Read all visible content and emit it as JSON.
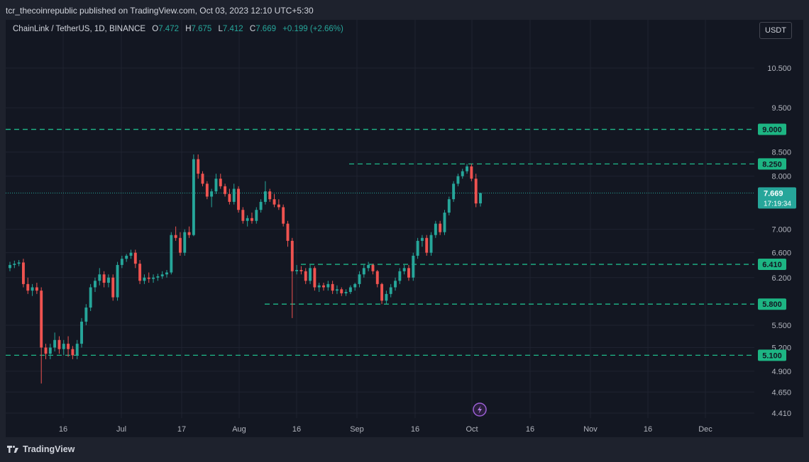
{
  "header": {
    "publisher_text": "tcr_thecoinrepublic published on TradingView.com, Oct 03, 2023 12:10 UTC+5:30"
  },
  "legend": {
    "symbol": "ChainLink / TetherUS, 1D, BINANCE",
    "open_label": "O",
    "open": "7.472",
    "high_label": "H",
    "high": "7.675",
    "low_label": "L",
    "low": "7.412",
    "close_label": "C",
    "close": "7.669",
    "change": "+0.199 (+2.66%)"
  },
  "currency_button": "USDT",
  "footer": {
    "brand": "TradingView"
  },
  "colors": {
    "up": "#26a69a",
    "down": "#ef5350",
    "level_line": "#1fb98a",
    "background": "#131722"
  },
  "chart_data": {
    "type": "candlestick",
    "y_axis_scale": "log",
    "y_ticks": [
      {
        "value": 10.5,
        "label": "10.500"
      },
      {
        "value": 9.5,
        "label": "9.500"
      },
      {
        "value": 8.5,
        "label": "8.500"
      },
      {
        "value": 8.0,
        "label": "8.000"
      },
      {
        "value": 7.0,
        "label": "7.000"
      },
      {
        "value": 6.6,
        "label": "6.600"
      },
      {
        "value": 6.2,
        "label": "6.200"
      },
      {
        "value": 5.5,
        "label": "5.500"
      },
      {
        "value": 5.2,
        "label": "5.200"
      },
      {
        "value": 4.9,
        "label": "4.900"
      },
      {
        "value": 4.65,
        "label": "4.650"
      },
      {
        "value": 4.41,
        "label": "4.410"
      }
    ],
    "x_ticks": [
      "16",
      "Jul",
      "17",
      "Aug",
      "16",
      "Sep",
      "16",
      "Oct",
      "16",
      "Nov",
      "16",
      "Dec"
    ],
    "price_levels": [
      {
        "value": 9.0,
        "label": "9.000"
      },
      {
        "value": 8.25,
        "label": "8.250"
      },
      {
        "value": 6.41,
        "label": "6.410"
      },
      {
        "value": 5.8,
        "label": "5.800"
      },
      {
        "value": 5.1,
        "label": "5.100"
      }
    ],
    "last_price": {
      "value": 7.669,
      "label": "7.669",
      "countdown": "17:19:34"
    },
    "candles": [
      [
        6.35,
        6.45,
        6.3,
        6.4
      ],
      [
        6.4,
        6.47,
        6.35,
        6.42
      ],
      [
        6.42,
        6.48,
        6.38,
        6.44
      ],
      [
        6.44,
        6.5,
        6.05,
        6.1
      ],
      [
        6.1,
        6.2,
        5.95,
        6.0
      ],
      [
        6.0,
        6.1,
        5.92,
        6.05
      ],
      [
        6.05,
        6.12,
        5.95,
        6.0
      ],
      [
        6.0,
        6.05,
        4.75,
        5.2
      ],
      [
        5.2,
        5.25,
        5.05,
        5.12
      ],
      [
        5.12,
        5.25,
        5.05,
        5.2
      ],
      [
        5.2,
        5.4,
        5.15,
        5.3
      ],
      [
        5.3,
        5.35,
        5.12,
        5.18
      ],
      [
        5.18,
        5.3,
        5.1,
        5.25
      ],
      [
        5.25,
        5.35,
        5.08,
        5.18
      ],
      [
        5.18,
        5.22,
        5.05,
        5.1
      ],
      [
        5.1,
        5.3,
        5.05,
        5.25
      ],
      [
        5.25,
        5.6,
        5.2,
        5.55
      ],
      [
        5.55,
        5.8,
        5.5,
        5.75
      ],
      [
        5.75,
        6.1,
        5.7,
        6.05
      ],
      [
        6.05,
        6.2,
        5.98,
        6.15
      ],
      [
        6.15,
        6.35,
        6.08,
        6.25
      ],
      [
        6.25,
        6.3,
        6.05,
        6.12
      ],
      [
        6.12,
        6.25,
        6.05,
        6.2
      ],
      [
        6.2,
        6.25,
        5.85,
        5.9
      ],
      [
        5.9,
        6.45,
        5.85,
        6.4
      ],
      [
        6.4,
        6.55,
        6.35,
        6.5
      ],
      [
        6.5,
        6.58,
        6.45,
        6.55
      ],
      [
        6.55,
        6.65,
        6.5,
        6.6
      ],
      [
        6.6,
        6.65,
        6.35,
        6.42
      ],
      [
        6.42,
        6.48,
        6.1,
        6.15
      ],
      [
        6.15,
        6.25,
        6.1,
        6.2
      ],
      [
        6.2,
        6.28,
        6.12,
        6.18
      ],
      [
        6.18,
        6.25,
        6.12,
        6.2
      ],
      [
        6.2,
        6.26,
        6.15,
        6.22
      ],
      [
        6.22,
        6.3,
        6.18,
        6.25
      ],
      [
        6.25,
        6.32,
        6.2,
        6.28
      ],
      [
        6.28,
        6.95,
        6.25,
        6.9
      ],
      [
        6.9,
        7.05,
        6.8,
        6.85
      ],
      [
        6.85,
        6.95,
        6.55,
        6.6
      ],
      [
        6.6,
        7.0,
        6.55,
        6.95
      ],
      [
        6.95,
        7.05,
        6.85,
        6.9
      ],
      [
        6.9,
        8.45,
        6.88,
        8.35
      ],
      [
        8.35,
        8.45,
        7.95,
        8.05
      ],
      [
        8.05,
        8.1,
        7.8,
        7.85
      ],
      [
        7.85,
        7.9,
        7.55,
        7.6
      ],
      [
        7.6,
        7.75,
        7.4,
        7.7
      ],
      [
        7.7,
        8.05,
        7.65,
        7.95
      ],
      [
        7.95,
        8.05,
        7.75,
        7.8
      ],
      [
        7.8,
        7.85,
        7.6,
        7.65
      ],
      [
        7.65,
        7.75,
        7.45,
        7.5
      ],
      [
        7.5,
        7.85,
        7.45,
        7.75
      ],
      [
        7.75,
        7.8,
        7.3,
        7.35
      ],
      [
        7.35,
        7.4,
        7.1,
        7.15
      ],
      [
        7.15,
        7.25,
        7.05,
        7.2
      ],
      [
        7.2,
        7.3,
        7.1,
        7.15
      ],
      [
        7.15,
        7.4,
        7.1,
        7.35
      ],
      [
        7.35,
        7.55,
        7.3,
        7.5
      ],
      [
        7.5,
        7.9,
        7.45,
        7.7
      ],
      [
        7.7,
        7.75,
        7.5,
        7.55
      ],
      [
        7.55,
        7.65,
        7.4,
        7.45
      ],
      [
        7.45,
        7.55,
        7.35,
        7.4
      ],
      [
        7.4,
        7.45,
        7.05,
        7.1
      ],
      [
        7.1,
        7.15,
        6.7,
        6.8
      ],
      [
        6.8,
        6.85,
        5.6,
        6.3
      ],
      [
        6.3,
        6.4,
        6.25,
        6.32
      ],
      [
        6.32,
        6.38,
        6.25,
        6.3
      ],
      [
        6.3,
        6.35,
        6.1,
        6.15
      ],
      [
        6.15,
        6.4,
        6.1,
        6.35
      ],
      [
        6.35,
        6.38,
        6.0,
        6.05
      ],
      [
        6.05,
        6.12,
        5.98,
        6.08
      ],
      [
        6.08,
        6.12,
        6.0,
        6.05
      ],
      [
        6.05,
        6.15,
        6.0,
        6.1
      ],
      [
        6.1,
        6.15,
        5.95,
        6.0
      ],
      [
        6.0,
        6.08,
        5.95,
        6.02
      ],
      [
        6.02,
        6.05,
        5.92,
        5.96
      ],
      [
        5.96,
        6.02,
        5.92,
        5.98
      ],
      [
        5.98,
        6.08,
        5.95,
        6.05
      ],
      [
        6.05,
        6.12,
        6.0,
        6.1
      ],
      [
        6.1,
        6.3,
        6.05,
        6.25
      ],
      [
        6.25,
        6.4,
        6.2,
        6.35
      ],
      [
        6.35,
        6.45,
        6.3,
        6.4
      ],
      [
        6.4,
        6.42,
        6.25,
        6.3
      ],
      [
        6.3,
        6.32,
        6.05,
        6.1
      ],
      [
        6.1,
        6.12,
        5.8,
        5.85
      ],
      [
        5.85,
        6.0,
        5.8,
        5.95
      ],
      [
        5.95,
        6.1,
        5.9,
        6.05
      ],
      [
        6.05,
        6.2,
        6.0,
        6.15
      ],
      [
        6.15,
        6.35,
        6.1,
        6.3
      ],
      [
        6.3,
        6.4,
        6.25,
        6.35
      ],
      [
        6.35,
        6.4,
        6.15,
        6.2
      ],
      [
        6.2,
        6.6,
        6.15,
        6.55
      ],
      [
        6.55,
        6.85,
        6.5,
        6.8
      ],
      [
        6.8,
        6.9,
        6.7,
        6.85
      ],
      [
        6.85,
        6.9,
        6.55,
        6.6
      ],
      [
        6.6,
        6.95,
        6.55,
        6.9
      ],
      [
        6.9,
        7.15,
        6.85,
        7.1
      ],
      [
        7.1,
        7.15,
        6.9,
        6.95
      ],
      [
        6.95,
        7.35,
        6.9,
        7.3
      ],
      [
        7.3,
        7.6,
        7.25,
        7.55
      ],
      [
        7.55,
        7.9,
        7.5,
        7.85
      ],
      [
        7.85,
        8.05,
        7.8,
        8.0
      ],
      [
        8.0,
        8.15,
        7.95,
        8.1
      ],
      [
        8.1,
        8.25,
        8.05,
        8.2
      ],
      [
        8.2,
        8.25,
        7.9,
        7.95
      ],
      [
        7.95,
        8.05,
        7.4,
        7.47
      ],
      [
        7.472,
        7.675,
        7.412,
        7.669
      ]
    ]
  }
}
